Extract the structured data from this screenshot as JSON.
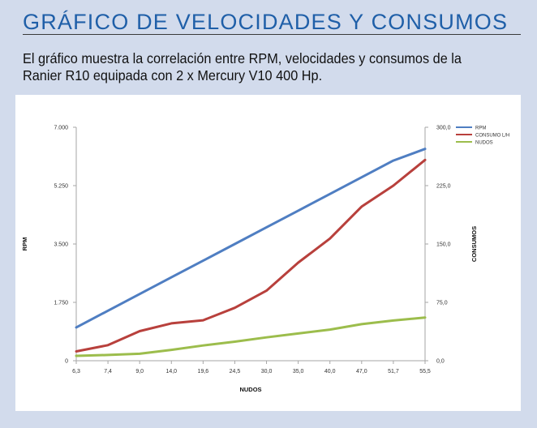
{
  "heading": "GRÁFICO DE VELOCIDADES Y CONSUMOS",
  "description": "El gráfico muestra la correlación entre RPM, velocidades y consumos de la Ranier R10 equipada con 2 x Mercury V10 400 Hp.",
  "colors": {
    "background": "#d2dbec",
    "heading": "#1f5fa8",
    "rpm": "#4f7ec2",
    "consumo": "#b8403c",
    "nudos": "#9cbd4c"
  },
  "chart_data": {
    "type": "line",
    "xlabel": "NUDOS",
    "ylabel_left": "RPM",
    "ylabel_right": "CONSUMOS",
    "x_tick_labels": [
      "6,3",
      "7,4",
      "9,0",
      "14,0",
      "19,6",
      "24,5",
      "30,0",
      "35,0",
      "40,0",
      "47,0",
      "51,7",
      "55,5"
    ],
    "y_left_ticks": [
      "0",
      "1.750",
      "3.500",
      "5.250",
      "7.000"
    ],
    "y_left_range": [
      0,
      7000
    ],
    "y_right_ticks": [
      "0,0",
      "75,0",
      "150,0",
      "225,0",
      "300,0"
    ],
    "y_right_range": [
      0,
      300
    ],
    "grid": false,
    "legend_position": "top-right",
    "series": [
      {
        "name": "RPM",
        "axis": "left",
        "color": "#4f7ec2",
        "values": [
          1000,
          1500,
          2000,
          2500,
          3000,
          3500,
          4000,
          4500,
          5000,
          5500,
          6000,
          6350
        ]
      },
      {
        "name": "CONSUMO L/H",
        "axis": "right",
        "color": "#b8403c",
        "values": [
          12,
          20,
          38,
          48,
          52,
          68,
          90,
          126,
          157,
          198,
          225,
          258
        ]
      },
      {
        "name": "NUDOS",
        "axis": "right",
        "color": "#9cbd4c",
        "values": [
          6.3,
          7.4,
          9.0,
          14.0,
          19.6,
          24.5,
          30.0,
          35.0,
          40.0,
          47.0,
          51.7,
          55.5
        ]
      }
    ]
  }
}
